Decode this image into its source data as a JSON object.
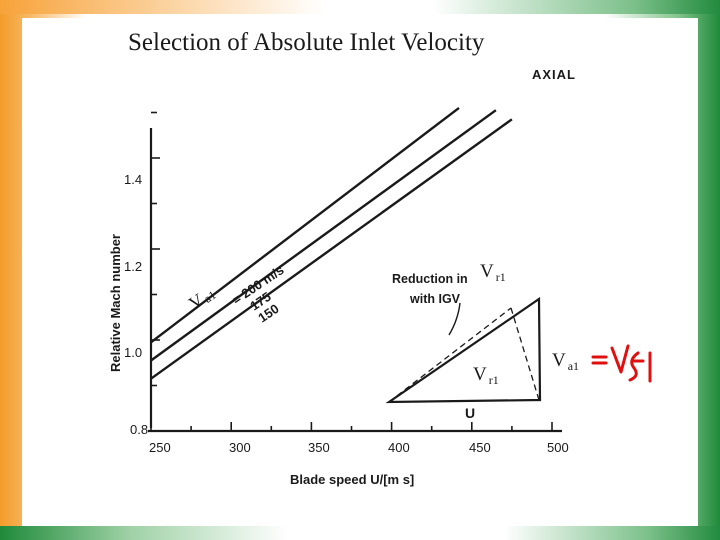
{
  "slide": {
    "title": "Selection of Absolute Inlet Velocity"
  },
  "chart_data": {
    "type": "line",
    "header_label": "AXIAL",
    "xlabel": "Blade speed U/[m s]",
    "ylabel": "Relative Mach number",
    "xlim": [
      250,
      500
    ],
    "ylim": [
      0.8,
      1.5
    ],
    "x_ticks": [
      "250",
      "300",
      "350",
      "400",
      "450",
      "500"
    ],
    "y_ticks": [
      "0.8",
      "1.0",
      "1.2",
      "1.4"
    ],
    "series": [
      {
        "name": "Va1 = 200 m/s",
        "x": [
          250,
          442
        ],
        "y": [
          0.995,
          1.51
        ]
      },
      {
        "name": "175",
        "x": [
          250,
          465
        ],
        "y": [
          0.955,
          1.505
        ]
      },
      {
        "name": "150",
        "x": [
          250,
          475
        ],
        "y": [
          0.915,
          1.485
        ]
      }
    ],
    "series_labels": {
      "first": "= 200 m/s",
      "second": "175",
      "third": "150"
    },
    "annotation": {
      "reduction_line1": "Reduction in",
      "reduction_line2": "with IGV",
      "u_label": "U"
    }
  },
  "overlay": {
    "va1_left_main": "V",
    "va1_left_sub": "a1",
    "vr1_top_main": "V",
    "vr1_top_sub": "r1",
    "vr1_mid_main": "V",
    "vr1_mid_sub": "r1",
    "va1_right_main": "V",
    "va1_right_sub": "a1",
    "handwritten_note": "Vf1",
    "note_color": "#e01010"
  }
}
